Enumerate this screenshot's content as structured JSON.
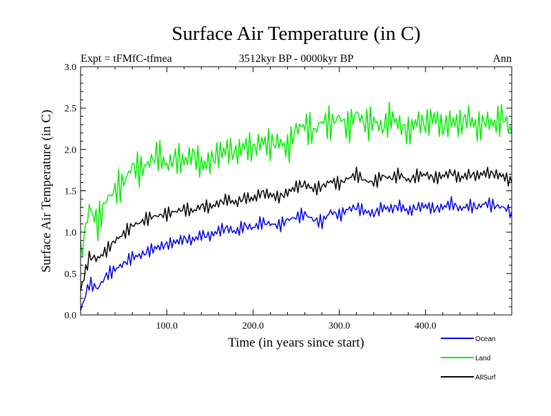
{
  "chart_data": {
    "type": "line",
    "title": "Surface Air Temperature (in C)",
    "subtitle": "3512kyr BP - 0000kyr BP",
    "experiment_label": "Expt = tFMfC-tfmea",
    "period_label": "Ann",
    "xlabel": "Time (in years since start)",
    "ylabel": "Surface Air Temperature (in C)",
    "xlim": [
      0,
      500
    ],
    "ylim": [
      0.0,
      3.0
    ],
    "x_ticks": [
      100,
      200,
      300,
      400
    ],
    "x_tick_labels": [
      "100.0",
      "200.0",
      "300.0",
      "400.0"
    ],
    "y_ticks": [
      0.0,
      0.5,
      1.0,
      1.5,
      2.0,
      2.5,
      3.0
    ],
    "y_tick_labels": [
      "0.0",
      "0.5",
      "1.0",
      "1.5",
      "2.0",
      "2.5",
      "3.0"
    ],
    "legend_position": "bottom-right",
    "series": [
      {
        "name": "Ocean",
        "color": "#0000ee",
        "x": [
          0,
          10,
          20,
          30,
          40,
          50,
          60,
          70,
          80,
          90,
          100,
          110,
          120,
          130,
          140,
          150,
          160,
          170,
          180,
          190,
          200,
          210,
          220,
          230,
          240,
          250,
          260,
          270,
          280,
          290,
          300,
          310,
          320,
          330,
          340,
          350,
          360,
          370,
          380,
          390,
          400,
          410,
          420,
          430,
          440,
          450,
          460,
          470,
          480,
          490,
          500
        ],
        "values": [
          0.05,
          0.38,
          0.32,
          0.48,
          0.55,
          0.62,
          0.7,
          0.72,
          0.78,
          0.82,
          0.85,
          0.88,
          0.92,
          0.9,
          0.97,
          0.95,
          1.02,
          1.05,
          1.0,
          1.08,
          1.05,
          1.12,
          1.1,
          1.08,
          1.15,
          1.18,
          1.22,
          1.15,
          1.12,
          1.25,
          1.2,
          1.28,
          1.3,
          1.25,
          1.22,
          1.3,
          1.28,
          1.32,
          1.25,
          1.3,
          1.32,
          1.28,
          1.3,
          1.35,
          1.28,
          1.32,
          1.3,
          1.35,
          1.32,
          1.3,
          1.25
        ]
      },
      {
        "name": "Land",
        "color": "#00ee00",
        "x": [
          0,
          10,
          20,
          30,
          40,
          50,
          60,
          70,
          80,
          90,
          100,
          110,
          120,
          130,
          140,
          150,
          160,
          170,
          180,
          190,
          200,
          210,
          220,
          230,
          240,
          250,
          260,
          270,
          280,
          290,
          300,
          310,
          320,
          330,
          340,
          350,
          360,
          370,
          380,
          390,
          400,
          410,
          420,
          430,
          440,
          450,
          460,
          470,
          480,
          490,
          500
        ],
        "values": [
          0.7,
          1.3,
          1.1,
          1.4,
          1.5,
          1.6,
          1.8,
          1.75,
          1.85,
          1.95,
          1.8,
          1.9,
          1.85,
          1.95,
          1.8,
          1.85,
          1.95,
          2.0,
          1.95,
          2.05,
          2.0,
          2.1,
          2.05,
          2.1,
          2.0,
          2.25,
          2.3,
          2.2,
          2.35,
          2.3,
          2.4,
          2.25,
          2.45,
          2.3,
          2.35,
          2.25,
          2.4,
          2.3,
          2.2,
          2.35,
          2.3,
          2.4,
          2.25,
          2.35,
          2.3,
          2.4,
          2.25,
          2.35,
          2.3,
          2.4,
          2.2
        ]
      },
      {
        "name": "AllSurf",
        "color": "#000000",
        "x": [
          0,
          10,
          20,
          30,
          40,
          50,
          60,
          70,
          80,
          90,
          100,
          110,
          120,
          130,
          140,
          150,
          160,
          170,
          180,
          190,
          200,
          210,
          220,
          230,
          240,
          250,
          260,
          270,
          280,
          290,
          300,
          310,
          320,
          330,
          340,
          350,
          360,
          370,
          380,
          390,
          400,
          410,
          420,
          430,
          440,
          450,
          460,
          470,
          480,
          490,
          500
        ],
        "values": [
          0.3,
          0.7,
          0.68,
          0.78,
          0.9,
          0.98,
          1.08,
          1.12,
          1.18,
          1.2,
          1.22,
          1.25,
          1.28,
          1.25,
          1.32,
          1.3,
          1.35,
          1.4,
          1.35,
          1.42,
          1.4,
          1.48,
          1.45,
          1.42,
          1.48,
          1.55,
          1.58,
          1.52,
          1.55,
          1.62,
          1.58,
          1.65,
          1.7,
          1.62,
          1.6,
          1.68,
          1.65,
          1.7,
          1.62,
          1.68,
          1.7,
          1.65,
          1.68,
          1.72,
          1.65,
          1.7,
          1.68,
          1.72,
          1.7,
          1.68,
          1.6
        ]
      }
    ]
  }
}
